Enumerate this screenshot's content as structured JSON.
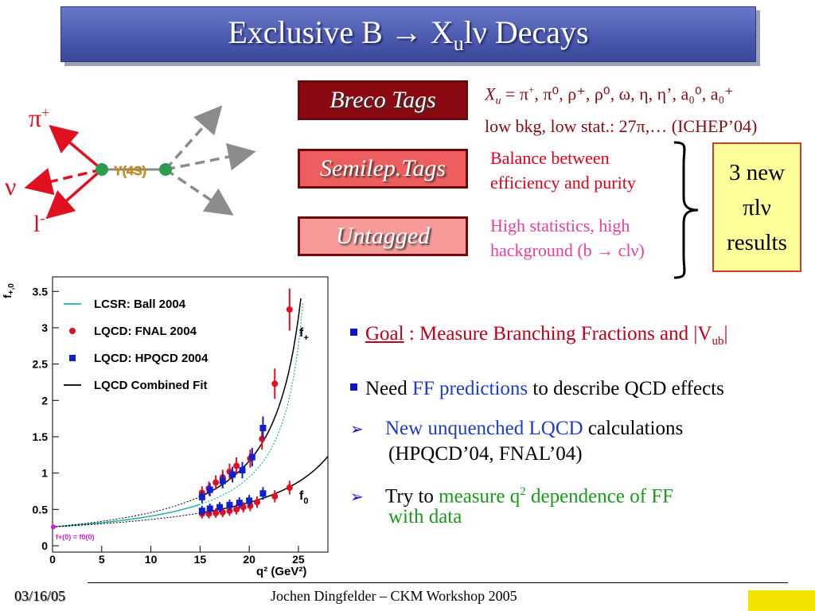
{
  "title": {
    "prefix": "Exclusive B ",
    "arrow": "→",
    "x": " X",
    "sub": "u",
    "suffix": "lν Decays"
  },
  "diagram": {
    "pi_label": "π",
    "pi_sup": "+",
    "nu_label": "ν",
    "l_label": "l",
    "l_sup": "-",
    "upsilon_label": "Υ(4S)"
  },
  "tags": {
    "breco": "Breco Tags",
    "semilep": "Semilep.Tags",
    "untagged": "Untagged"
  },
  "breco_desc": {
    "xu": "X",
    "xu_sub": "u",
    "eq": " =  π",
    "line1_rest": ", π⁰, ρ⁺, ρ⁰, ω, η, η’, a₀⁰, a₀⁺",
    "line2": "low bkg, low stat.: 27π,… (ICHEP’04)"
  },
  "semilep_desc": {
    "line1": "Balance between",
    "line2": "efficiency and purity"
  },
  "untagged_desc": {
    "line1": "High statistics, high",
    "line2": "hackground (b → clν)"
  },
  "results": {
    "line1": "3 new",
    "line2": "πlν",
    "line3": "results"
  },
  "bullets": {
    "goal_label": "Goal",
    "goal_text": " : Measure Branching Fractions and |V",
    "goal_sub": "ub",
    "goal_end": "|",
    "need": "Need ",
    "ff": "FF predictions",
    "need_rest": " to describe QCD effects",
    "new_lqcd": "New unquenched LQCD",
    "calc": " calculations",
    "refs": "(HPQCD’04, FNAL’04)",
    "try": "Try to ",
    "measure": "measure q",
    "measure_sup": "2",
    "dep": " dependence of FF",
    "with_data": "with data"
  },
  "footer": {
    "date": "03/16/05",
    "center": "Jochen Dingfelder –  CKM Workshop 2005"
  },
  "chart_data": {
    "type": "scatter",
    "xlabel": "q² (GeV²)",
    "ylabel": "f+,0",
    "xlim": [
      0,
      28
    ],
    "ylim": [
      0,
      3.7
    ],
    "x_ticks": [
      "0",
      "5",
      "10",
      "15",
      "20",
      "25"
    ],
    "y_ticks": [
      "0",
      "0.5",
      "1",
      "1.5",
      "2",
      "2.5",
      "3",
      "3.5"
    ],
    "legend": [
      {
        "name": "LCSR:  Ball 2004",
        "color": "#1fb3a4",
        "marker": "line"
      },
      {
        "name": "LQCD:  FNAL 2004",
        "color": "#e01020",
        "marker": "circle"
      },
      {
        "name": "LQCD:  HPQCD 2004",
        "color": "#1020d0",
        "marker": "square"
      },
      {
        "name": "LQCD Combined Fit",
        "color": "#000000",
        "marker": "line"
      }
    ],
    "curve_labels": {
      "fplus": "f",
      "fplus_sub": "+",
      "fzero": "f",
      "fzero_sub": "0"
    },
    "annotation": "f+(0) = f0(0)",
    "series": [
      {
        "name": "FNAL f+",
        "x": [
          15.2,
          15.9,
          16.6,
          17.3,
          18.0,
          18.7,
          20.1,
          21.3,
          22.6,
          24.1
        ],
        "y": [
          0.73,
          0.79,
          0.87,
          0.94,
          1.02,
          1.1,
          1.2,
          1.47,
          2.23,
          3.25
        ]
      },
      {
        "name": "HPQCD f+",
        "x": [
          15.2,
          16.0,
          17.3,
          18.3,
          19.3,
          20.3,
          21.4
        ],
        "y": [
          0.67,
          0.77,
          0.89,
          0.98,
          1.04,
          1.22,
          1.62
        ]
      },
      {
        "name": "FNAL f0",
        "x": [
          15.2,
          15.9,
          16.6,
          17.3,
          18.0,
          18.7,
          19.4,
          20.1,
          20.8,
          22.6,
          24.1
        ],
        "y": [
          0.44,
          0.44,
          0.45,
          0.46,
          0.48,
          0.5,
          0.53,
          0.55,
          0.6,
          0.68,
          0.8
        ]
      },
      {
        "name": "HPQCD f0",
        "x": [
          15.2,
          16.0,
          17.0,
          18.0,
          19.0,
          20.0,
          21.4
        ],
        "y": [
          0.48,
          0.51,
          0.53,
          0.56,
          0.59,
          0.62,
          0.72
        ]
      }
    ]
  }
}
